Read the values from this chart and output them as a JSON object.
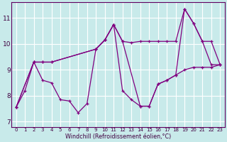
{
  "xlabel": "Windchill (Refroidissement éolien,°C)",
  "bg_color": "#c8eaea",
  "line_color": "#800080",
  "grid_color": "#ffffff",
  "xlim_min": -0.5,
  "xlim_max": 23.5,
  "ylim_min": 6.8,
  "ylim_max": 11.6,
  "xticks": [
    0,
    1,
    2,
    3,
    4,
    5,
    6,
    7,
    8,
    9,
    10,
    11,
    12,
    13,
    14,
    15,
    16,
    17,
    18,
    19,
    20,
    21,
    22,
    23
  ],
  "yticks": [
    7,
    8,
    9,
    10,
    11
  ],
  "s1_x": [
    0,
    1,
    2,
    3,
    4,
    5,
    6,
    7,
    8,
    9,
    10,
    11,
    12,
    13,
    14,
    15,
    16,
    17,
    18,
    19,
    20,
    21,
    22,
    23
  ],
  "s1_y": [
    7.55,
    8.2,
    9.3,
    8.6,
    8.5,
    7.85,
    7.8,
    7.35,
    7.7,
    9.8,
    10.15,
    10.75,
    8.2,
    7.85,
    7.6,
    7.6,
    8.45,
    8.6,
    8.8,
    9.0,
    9.1,
    9.1,
    9.1,
    9.2
  ],
  "s2_x": [
    0,
    2,
    3,
    4,
    9,
    10,
    11,
    12,
    14,
    15,
    16,
    17,
    18,
    19,
    20,
    21,
    22,
    23
  ],
  "s2_y": [
    7.55,
    9.3,
    9.3,
    9.3,
    9.8,
    10.15,
    10.75,
    10.1,
    7.6,
    7.6,
    8.45,
    8.6,
    8.8,
    11.35,
    10.8,
    10.1,
    9.2,
    9.2
  ],
  "s3_x": [
    0,
    2,
    3,
    4,
    9,
    10,
    11,
    12,
    13,
    14,
    15,
    16,
    17,
    18,
    19,
    20,
    21,
    22,
    23
  ],
  "s3_y": [
    7.55,
    9.3,
    9.3,
    9.3,
    9.8,
    10.15,
    10.75,
    10.1,
    10.05,
    10.1,
    10.1,
    10.1,
    10.1,
    10.1,
    11.35,
    10.8,
    10.1,
    10.1,
    9.2
  ]
}
